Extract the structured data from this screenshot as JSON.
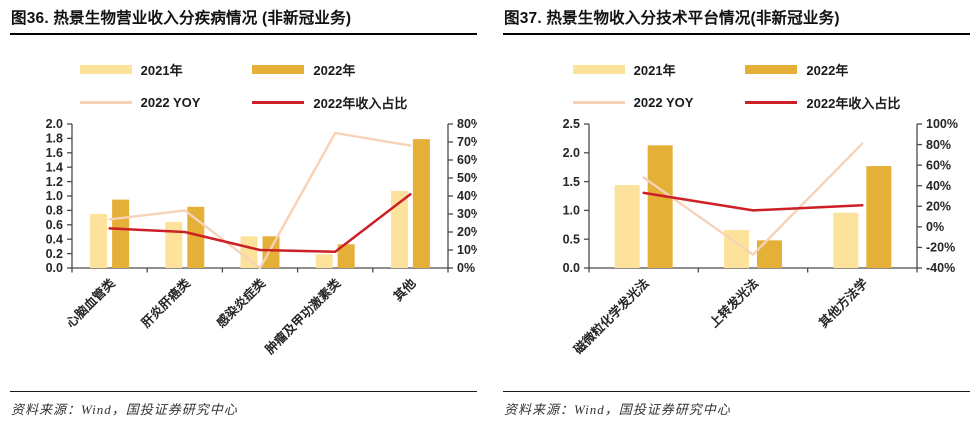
{
  "panels": [
    {
      "title": "图36. 热景生物营业收入分疾病情况 (非新冠业务)",
      "source": "资料来源：Wind，国投证券研究中心"
    },
    {
      "title": "图37. 热景生物收入分技术平台情况(非新冠业务)",
      "source": "资料来源：Wind，国投证券研究中心"
    }
  ],
  "colors": {
    "bar_2021": "#FCE29B",
    "bar_2022": "#E4B038",
    "yoy_line": "#F8D2B7",
    "share_line": "#CC2026",
    "axis": "#4a4a4a",
    "tick_text": "#262626"
  },
  "chart_data": [
    {
      "type": "bar",
      "subtype": "grouped-bars-with-lines",
      "title": "图36. 热景生物营业收入分疾病情况 (非新冠业务)",
      "categories": [
        "心脑血管类",
        "肝炎肝癌类",
        "感染炎症类",
        "肿瘤及甲功激素类",
        "其他"
      ],
      "bar_series": [
        {
          "name": "2021年",
          "axis": "left",
          "color": "#FCE29B",
          "values": [
            0.75,
            0.64,
            0.44,
            0.19,
            1.07
          ]
        },
        {
          "name": "2022年",
          "axis": "left",
          "color": "#E4B038",
          "values": [
            0.95,
            0.85,
            0.44,
            0.33,
            1.79
          ]
        }
      ],
      "line_series": [
        {
          "name": "2022 YOY",
          "axis": "right",
          "color": "#F8D2B7",
          "values": [
            27,
            32,
            0,
            75,
            68
          ]
        },
        {
          "name": "2022年收入占比",
          "axis": "right",
          "color": "#CC2026",
          "values": [
            22,
            20,
            10,
            9,
            41
          ]
        }
      ],
      "left_axis": {
        "min": 0,
        "max": 2.0,
        "step": 0.2,
        "format": "1dp"
      },
      "right_axis": {
        "min": 0,
        "max": 80,
        "step": 10,
        "format": "pct"
      },
      "legend_position": "top",
      "grid": false
    },
    {
      "type": "bar",
      "subtype": "grouped-bars-with-lines",
      "title": "图37. 热景生物收入分技术平台情况(非新冠业务)",
      "categories": [
        "磁微粒化学发光法",
        "上转发光法",
        "其他方法学"
      ],
      "bar_series": [
        {
          "name": "2021年",
          "axis": "left",
          "color": "#FCE29B",
          "values": [
            1.44,
            0.66,
            0.96
          ]
        },
        {
          "name": "2022年",
          "axis": "left",
          "color": "#E4B038",
          "values": [
            2.13,
            0.48,
            1.77
          ]
        }
      ],
      "line_series": [
        {
          "name": "2022 YOY",
          "axis": "right",
          "color": "#F8D2B7",
          "values": [
            48,
            -27,
            81
          ]
        },
        {
          "name": "2022年收入占比",
          "axis": "right",
          "color": "#CC2026",
          "values": [
            33,
            16,
            21
          ]
        }
      ],
      "left_axis": {
        "min": 0,
        "max": 2.5,
        "step": 0.5,
        "format": "1dp"
      },
      "right_axis": {
        "min": -40,
        "max": 100,
        "step": 20,
        "format": "pct"
      },
      "legend_position": "top",
      "grid": false
    }
  ]
}
